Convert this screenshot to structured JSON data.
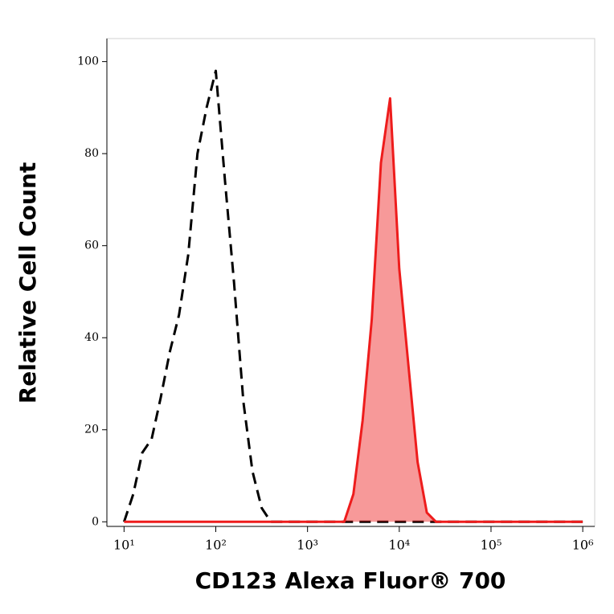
{
  "chart_data": {
    "type": "line",
    "xlabel": "CD123 Alexa Fluor® 700",
    "ylabel": "Relative Cell Count",
    "x": [
      10,
      12.6,
      15.8,
      20,
      25.1,
      31.6,
      39.8,
      50.1,
      63.1,
      79.4,
      100,
      126,
      158,
      200,
      251,
      316,
      398,
      501,
      631,
      794,
      1000,
      1259,
      1585,
      1995,
      2512,
      3162,
      3981,
      5012,
      6310,
      7943,
      10000,
      12589,
      15849,
      19953,
      25119,
      31623,
      39811,
      50119,
      63096,
      79433,
      100000,
      125893,
      158489,
      199526,
      251189,
      316228,
      398107,
      501187,
      630957,
      794328,
      1000000
    ],
    "series": [
      {
        "color": "#000000",
        "dashed": true,
        "filled": false,
        "values": [
          0,
          6,
          15,
          18,
          27,
          37,
          45,
          58,
          80,
          90,
          98,
          74,
          52,
          26,
          11,
          3,
          0,
          0,
          0,
          0,
          0,
          0,
          0,
          0,
          0,
          0,
          0,
          0,
          0,
          0,
          0,
          0,
          0,
          0,
          0,
          0,
          0,
          0,
          0,
          0,
          0,
          0,
          0,
          0,
          0,
          0,
          0,
          0,
          0,
          0,
          0
        ]
      },
      {
        "color": "#ee1c1c",
        "dashed": false,
        "filled": true,
        "values": [
          0,
          0,
          0,
          0,
          0,
          0,
          0,
          0,
          0,
          0,
          0,
          0,
          0,
          0,
          0,
          0,
          0,
          0,
          0,
          0,
          0,
          0,
          0,
          0,
          0,
          6,
          22,
          44,
          78,
          92,
          55,
          34,
          13,
          2,
          0,
          0,
          0,
          0,
          0,
          0,
          0,
          0,
          0,
          0,
          0,
          0,
          0,
          0,
          0,
          0,
          0
        ]
      }
    ],
    "xscale": "log",
    "xlim": [
      6.5,
      1350000
    ],
    "xticks": [
      {
        "value": 10,
        "label": "10¹"
      },
      {
        "value": 100,
        "label": "10²"
      },
      {
        "value": 1000,
        "label": "10³"
      },
      {
        "value": 10000,
        "label": "10⁴"
      },
      {
        "value": 100000,
        "label": "10⁵"
      },
      {
        "value": 1000000,
        "label": "10⁶"
      }
    ],
    "ylim": [
      -1,
      105
    ],
    "yticks": [
      0,
      20,
      40,
      60,
      80,
      100
    ]
  }
}
